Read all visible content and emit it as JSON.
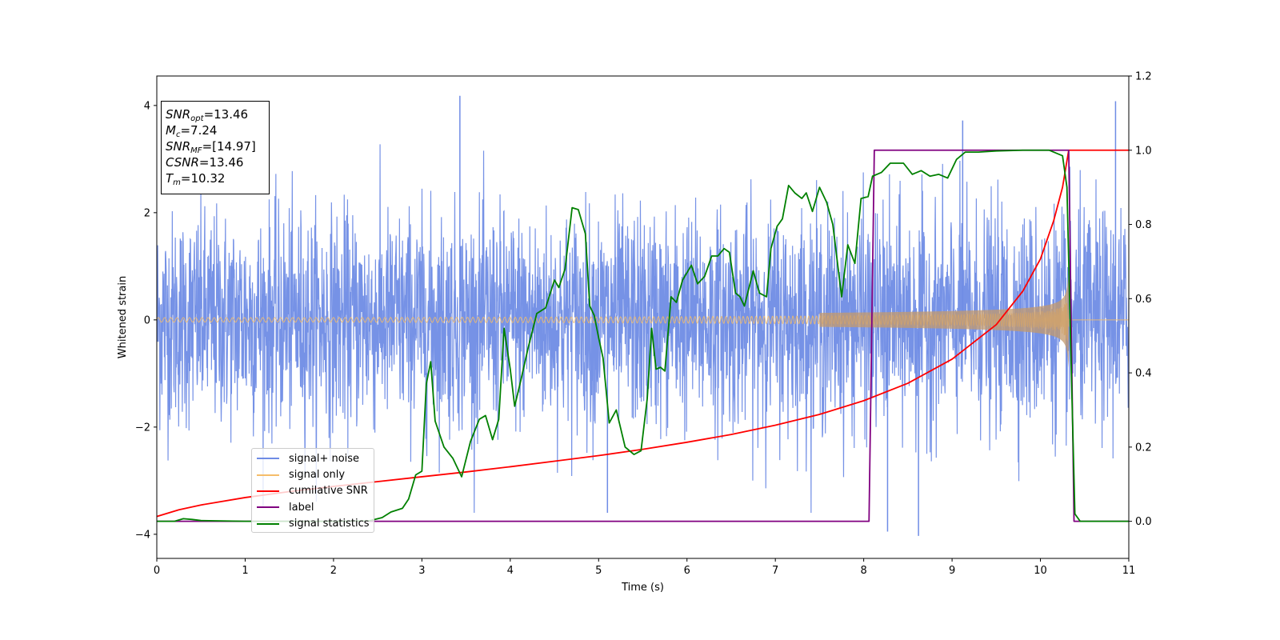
{
  "chart_data": {
    "type": "line",
    "xlabel": "Time (s)",
    "ylabel": "Whitened strain",
    "xlim": [
      0,
      11
    ],
    "ylim_left": [
      -4.45,
      4.55
    ],
    "ylim_right": [
      -0.1,
      1.2
    ],
    "x_ticks": [
      0,
      1,
      2,
      3,
      4,
      5,
      6,
      7,
      8,
      9,
      10,
      11
    ],
    "y_ticks_left": [
      -4,
      -2,
      0,
      2,
      4
    ],
    "y_ticks_right": [
      0.0,
      0.2,
      0.4,
      0.6,
      0.8,
      1.0,
      1.2
    ],
    "y_tick_labels_left": [
      "−4",
      "−2",
      "0",
      "2",
      "4"
    ],
    "y_tick_labels_right": [
      "0.0",
      "0.2",
      "0.4",
      "0.6",
      "0.8",
      "1.0",
      "1.2"
    ],
    "grid": false,
    "legend_position": "lower-left",
    "annotation": {
      "snr_opt": "=13.46",
      "mc": "=7.24",
      "snr_mf": "=[14.97]",
      "csnr": "=13.46",
      "tm": "=10.32"
    },
    "series": [
      {
        "name": "signal+ noise",
        "axis": "left",
        "color": "#6f8ce5",
        "kind": "noise",
        "sigma": 1.0,
        "extremes": [
          {
            "x": 3.43,
            "y": 4.18
          },
          {
            "x": 10.85,
            "y": 4.08
          },
          {
            "x": 9.12,
            "y": 3.72
          },
          {
            "x": 8.62,
            "y": -4.03
          },
          {
            "x": 8.27,
            "y": -3.95
          },
          {
            "x": 5.1,
            "y": -3.6
          }
        ]
      },
      {
        "name": "signal only",
        "axis": "left",
        "color": "#f5bd6a",
        "kind": "chirp",
        "amplitude_start": 0.04,
        "amplitude_end": 1.0,
        "merger_time": 10.32
      },
      {
        "name": "cumilative SNR",
        "axis": "right",
        "color": "#ff0000",
        "points": [
          [
            0,
            0.013
          ],
          [
            0.25,
            0.031
          ],
          [
            0.5,
            0.044
          ],
          [
            1,
            0.064
          ],
          [
            1.5,
            0.08
          ],
          [
            2,
            0.094
          ],
          [
            2.5,
            0.107
          ],
          [
            3,
            0.12
          ],
          [
            3.5,
            0.133
          ],
          [
            4,
            0.147
          ],
          [
            4.5,
            0.162
          ],
          [
            5,
            0.177
          ],
          [
            5.5,
            0.194
          ],
          [
            6,
            0.213
          ],
          [
            6.5,
            0.234
          ],
          [
            7,
            0.259
          ],
          [
            7.5,
            0.288
          ],
          [
            8,
            0.325
          ],
          [
            8.5,
            0.372
          ],
          [
            9,
            0.437
          ],
          [
            9.5,
            0.53
          ],
          [
            9.8,
            0.62
          ],
          [
            10,
            0.707
          ],
          [
            10.15,
            0.81
          ],
          [
            10.25,
            0.9
          ],
          [
            10.32,
            1.0
          ],
          [
            11,
            1.0
          ]
        ]
      },
      {
        "name": "label",
        "axis": "right",
        "color": "#800080",
        "points": [
          [
            0,
            0
          ],
          [
            8.06,
            0
          ],
          [
            8.12,
            1
          ],
          [
            10.32,
            1
          ],
          [
            10.38,
            0
          ],
          [
            11,
            0
          ]
        ]
      },
      {
        "name": "signal statistics",
        "axis": "right",
        "color": "#008000",
        "points": [
          [
            0,
            0
          ],
          [
            0.2,
            0
          ],
          [
            0.3,
            0.007
          ],
          [
            0.4,
            0.005
          ],
          [
            0.5,
            0.002
          ],
          [
            1,
            0
          ],
          [
            2,
            0
          ],
          [
            2.4,
            0.001
          ],
          [
            2.55,
            0.01
          ],
          [
            2.65,
            0.025
          ],
          [
            2.78,
            0.035
          ],
          [
            2.85,
            0.06
          ],
          [
            2.93,
            0.125
          ],
          [
            3.0,
            0.135
          ],
          [
            3.05,
            0.37
          ],
          [
            3.1,
            0.43
          ],
          [
            3.15,
            0.27
          ],
          [
            3.25,
            0.2
          ],
          [
            3.35,
            0.17
          ],
          [
            3.45,
            0.12
          ],
          [
            3.55,
            0.215
          ],
          [
            3.65,
            0.275
          ],
          [
            3.72,
            0.285
          ],
          [
            3.8,
            0.22
          ],
          [
            3.87,
            0.275
          ],
          [
            3.93,
            0.52
          ],
          [
            4.0,
            0.41
          ],
          [
            4.05,
            0.31
          ],
          [
            4.12,
            0.38
          ],
          [
            4.2,
            0.465
          ],
          [
            4.3,
            0.56
          ],
          [
            4.4,
            0.575
          ],
          [
            4.5,
            0.65
          ],
          [
            4.55,
            0.63
          ],
          [
            4.62,
            0.68
          ],
          [
            4.7,
            0.845
          ],
          [
            4.77,
            0.84
          ],
          [
            4.85,
            0.775
          ],
          [
            4.9,
            0.58
          ],
          [
            4.95,
            0.555
          ],
          [
            5.0,
            0.495
          ],
          [
            5.05,
            0.44
          ],
          [
            5.12,
            0.265
          ],
          [
            5.2,
            0.3
          ],
          [
            5.3,
            0.2
          ],
          [
            5.4,
            0.18
          ],
          [
            5.48,
            0.19
          ],
          [
            5.55,
            0.33
          ],
          [
            5.6,
            0.52
          ],
          [
            5.65,
            0.41
          ],
          [
            5.7,
            0.415
          ],
          [
            5.75,
            0.405
          ],
          [
            5.82,
            0.605
          ],
          [
            5.88,
            0.59
          ],
          [
            5.95,
            0.65
          ],
          [
            6.05,
            0.69
          ],
          [
            6.12,
            0.64
          ],
          [
            6.2,
            0.66
          ],
          [
            6.28,
            0.715
          ],
          [
            6.35,
            0.715
          ],
          [
            6.42,
            0.735
          ],
          [
            6.48,
            0.725
          ],
          [
            6.55,
            0.615
          ],
          [
            6.6,
            0.605
          ],
          [
            6.65,
            0.58
          ],
          [
            6.75,
            0.675
          ],
          [
            6.82,
            0.615
          ],
          [
            6.9,
            0.605
          ],
          [
            6.95,
            0.735
          ],
          [
            7.02,
            0.795
          ],
          [
            7.08,
            0.815
          ],
          [
            7.15,
            0.905
          ],
          [
            7.22,
            0.885
          ],
          [
            7.3,
            0.87
          ],
          [
            7.35,
            0.885
          ],
          [
            7.42,
            0.835
          ],
          [
            7.5,
            0.9
          ],
          [
            7.58,
            0.86
          ],
          [
            7.65,
            0.8
          ],
          [
            7.75,
            0.605
          ],
          [
            7.82,
            0.745
          ],
          [
            7.9,
            0.695
          ],
          [
            7.97,
            0.87
          ],
          [
            8.05,
            0.875
          ],
          [
            8.1,
            0.93
          ],
          [
            8.2,
            0.94
          ],
          [
            8.3,
            0.965
          ],
          [
            8.45,
            0.965
          ],
          [
            8.55,
            0.935
          ],
          [
            8.65,
            0.945
          ],
          [
            8.75,
            0.93
          ],
          [
            8.85,
            0.935
          ],
          [
            8.95,
            0.925
          ],
          [
            9.05,
            0.975
          ],
          [
            9.15,
            0.995
          ],
          [
            9.3,
            0.995
          ],
          [
            9.5,
            0.998
          ],
          [
            9.8,
            1.0
          ],
          [
            10.1,
            1.0
          ],
          [
            10.25,
            0.985
          ],
          [
            10.3,
            0.9
          ],
          [
            10.35,
            0.4
          ],
          [
            10.39,
            0.02
          ],
          [
            10.45,
            0.0
          ],
          [
            11,
            0.0
          ]
        ]
      }
    ]
  },
  "legend": {
    "items": [
      "signal+ noise",
      "signal only",
      "cumilative SNR",
      "label",
      "signal statistics"
    ],
    "colors": [
      "#6f8ce5",
      "#f5bd6a",
      "#ff0000",
      "#800080",
      "#008000"
    ]
  }
}
